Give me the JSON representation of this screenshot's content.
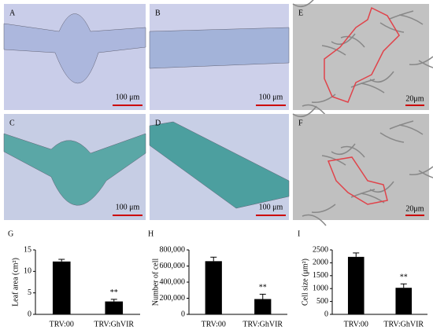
{
  "image_panels": [
    {
      "label": "A",
      "scale_bar": "100 μm"
    },
    {
      "label": "B",
      "scale_bar": "100 μm"
    },
    {
      "label": "E",
      "scale_bar": "20μm"
    },
    {
      "label": "C",
      "scale_bar": "100 μm"
    },
    {
      "label": "D",
      "scale_bar": "100 μm"
    },
    {
      "label": "F",
      "scale_bar": "20μm"
    }
  ],
  "chart_data": [
    {
      "type": "bar",
      "label": "G",
      "y_label": "Leaf area (cm²)",
      "categories": [
        "TRV:00",
        "TRV:GhVIR"
      ],
      "values": [
        12.3,
        3.0
      ],
      "errors": [
        0.5,
        0.5
      ],
      "significance": [
        null,
        "**"
      ],
      "color": "#000000",
      "ylim": [
        0,
        15
      ],
      "yticks": [
        0,
        5,
        10,
        15
      ]
    },
    {
      "type": "bar",
      "label": "H",
      "y_label": "Number of cell",
      "categories": [
        "TRV:00",
        "TRV:GhVIR"
      ],
      "values": [
        660000,
        190000
      ],
      "errors": [
        50000,
        60000
      ],
      "significance": [
        null,
        "**"
      ],
      "color": "#000000",
      "ylim": [
        0,
        800000
      ],
      "yticks": [
        0,
        {
          "value": 200000,
          "label": "200,000"
        },
        {
          "value": 400000,
          "label": "400,000"
        },
        {
          "value": 600000,
          "label": "600,000"
        },
        {
          "value": 800000,
          "label": "800,000"
        }
      ]
    },
    {
      "type": "bar",
      "label": "I",
      "y_label": "Cell size (μm²)",
      "categories": [
        "TRV:00",
        "TRV:GhVIR"
      ],
      "values": [
        2230,
        1030
      ],
      "errors": [
        150,
        150
      ],
      "significance": [
        null,
        "**"
      ],
      "color": "#000000",
      "ylim": [
        0,
        2500
      ],
      "yticks": [
        0,
        500,
        1000,
        1500,
        2000,
        2500
      ]
    }
  ]
}
